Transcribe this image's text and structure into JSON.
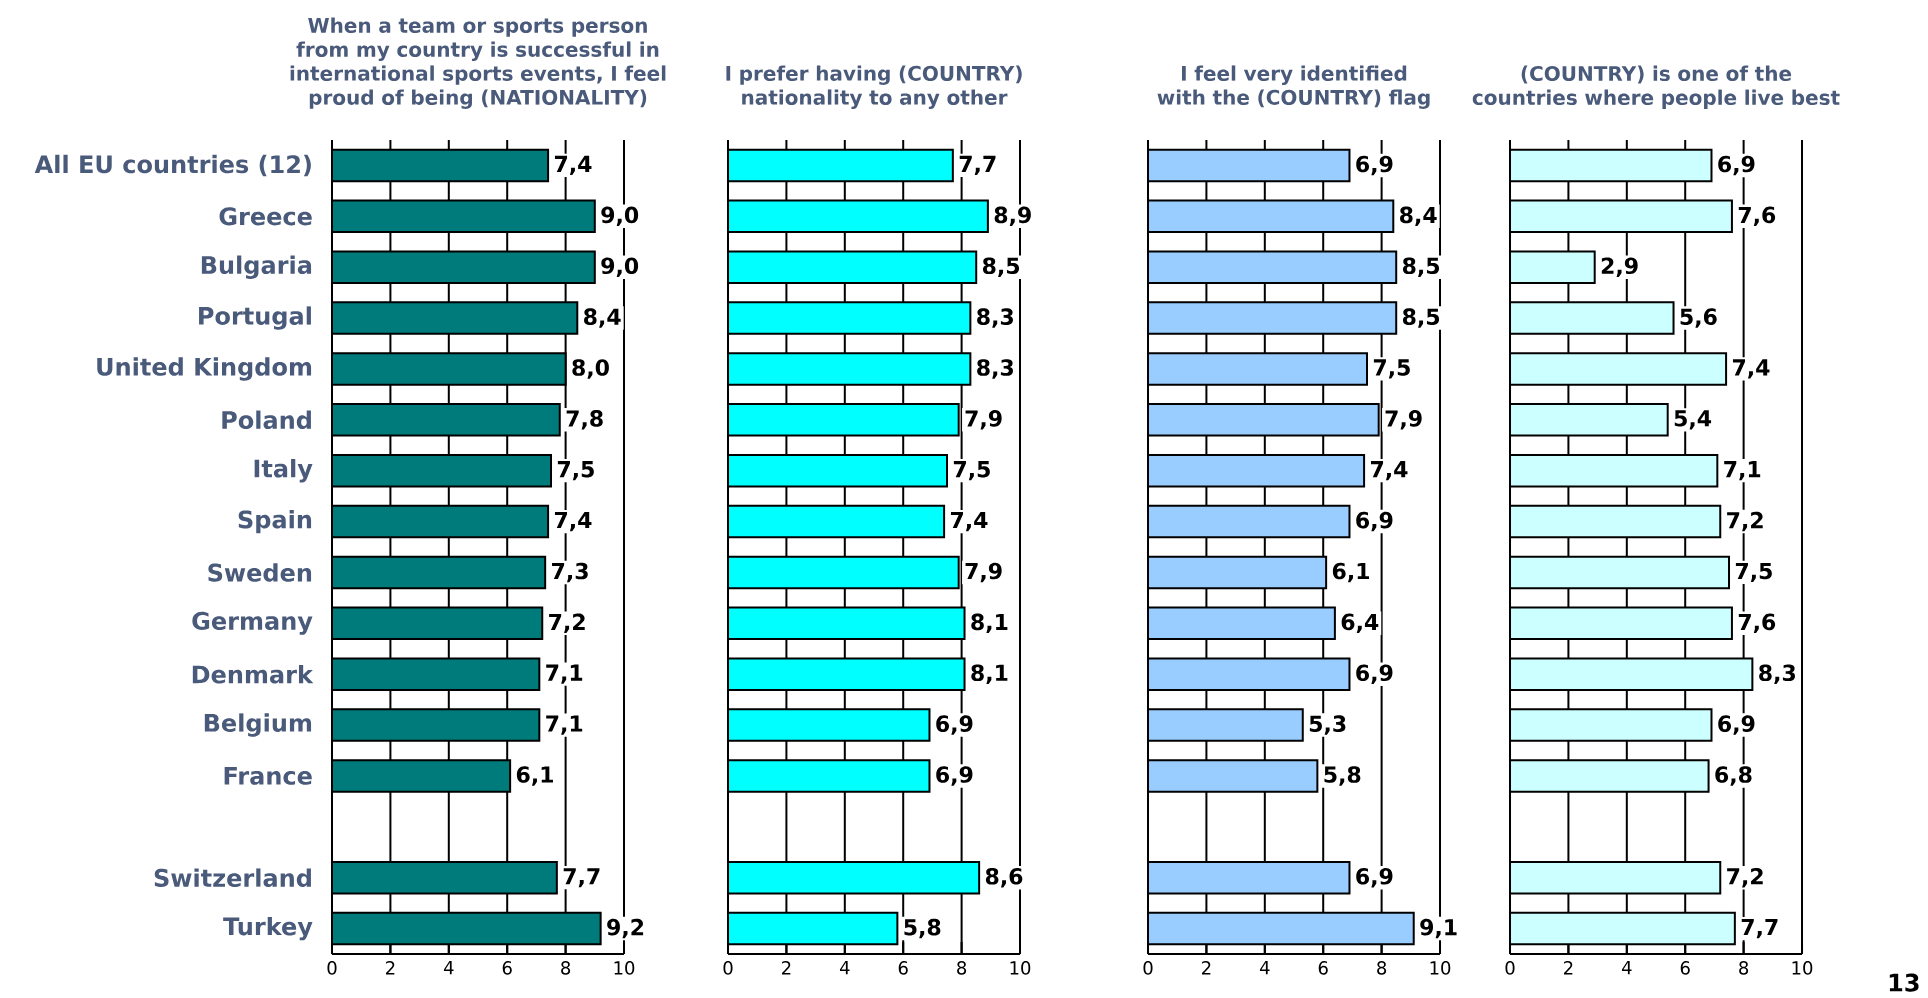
{
  "chart_data": [
    {
      "type": "bar",
      "orientation": "horizontal",
      "title": "When a team or sports person from my country is successful in international sports events, I feel proud of being (NATIONALITY)",
      "categories": [
        "All EU countries (12)",
        "Greece",
        "Bulgaria",
        "Portugal",
        "United Kingdom",
        "Poland",
        "Italy",
        "Spain",
        "Sweden",
        "Germany",
        "Denmark",
        "Belgium",
        "France",
        null,
        "Switzerland",
        "Turkey"
      ],
      "values": [
        7.4,
        9.0,
        9.0,
        8.4,
        8.0,
        7.8,
        7.5,
        7.4,
        7.3,
        7.2,
        7.1,
        7.1,
        6.1,
        null,
        7.7,
        9.2
      ],
      "value_labels": [
        "7,4",
        "9,0",
        "9,0",
        "8,4",
        "8,0",
        "7,8",
        "7,5",
        "7,4",
        "7,3",
        "7,2",
        "7,1",
        "7,1",
        "6,1",
        null,
        "7,7",
        "9,2"
      ],
      "color": "#007b7b",
      "xlim": [
        0,
        10
      ],
      "xticks": [
        0,
        2,
        4,
        6,
        8,
        10
      ],
      "grid": "x"
    },
    {
      "type": "bar",
      "orientation": "horizontal",
      "title": "I prefer having (COUNTRY) nationality to any other",
      "values": [
        7.7,
        8.9,
        8.5,
        8.3,
        8.3,
        7.9,
        7.5,
        7.4,
        7.9,
        8.1,
        8.1,
        6.9,
        6.9,
        null,
        8.6,
        5.8
      ],
      "value_labels": [
        "7,7",
        "8,9",
        "8,5",
        "8,3",
        "8,3",
        "7,9",
        "7,5",
        "7,4",
        "7,9",
        "8,1",
        "8,1",
        "6,9",
        "6,9",
        null,
        "8,6",
        "5,8"
      ],
      "color": "#00ffff",
      "xlim": [
        0,
        10
      ],
      "xticks": [
        0,
        2,
        4,
        6,
        8,
        10
      ],
      "grid": "x",
      "tick_labels": "x"
    },
    {
      "type": "bar",
      "orientation": "horizontal",
      "title": "I feel very identified with the (COUNTRY) flag",
      "values": [
        6.9,
        8.4,
        8.5,
        8.5,
        7.5,
        7.9,
        7.4,
        6.9,
        6.1,
        6.4,
        6.9,
        5.3,
        5.8,
        null,
        6.9,
        9.1
      ],
      "value_labels": [
        "6,9",
        "8,4",
        "8,5",
        "8,5",
        "7,5",
        "7,9",
        "7,4",
        "6,9",
        "6,1",
        "6,4",
        "6,9",
        "5,3",
        "5,8",
        null,
        "6,9",
        "9,1"
      ],
      "color": "#99ccff",
      "xlim": [
        0,
        10
      ],
      "xticks": [
        0,
        2,
        4,
        6,
        8,
        10
      ],
      "grid": "x",
      "tick_labels": "x"
    },
    {
      "type": "bar",
      "orientation": "horizontal",
      "title": "(COUNTRY) is one of the countries where people live best",
      "values": [
        6.9,
        7.6,
        2.9,
        5.6,
        7.4,
        5.4,
        7.1,
        7.2,
        7.5,
        7.6,
        8.3,
        6.9,
        6.8,
        null,
        7.2,
        7.7
      ],
      "value_labels": [
        "6,9",
        "7,6",
        "2,9",
        "5,6",
        "7,4",
        "5,4",
        "7,1",
        "7,2",
        "7,5",
        "7,6",
        "8,3",
        "6,9",
        "6,8",
        null,
        "7,2",
        "7,7"
      ],
      "color": "#ccffff",
      "xlim": [
        0,
        10
      ],
      "xticks": [
        0,
        2,
        4,
        6,
        8,
        10
      ],
      "grid": "x",
      "tick_labels": "x",
      "annotations": [
        "13"
      ]
    }
  ]
}
